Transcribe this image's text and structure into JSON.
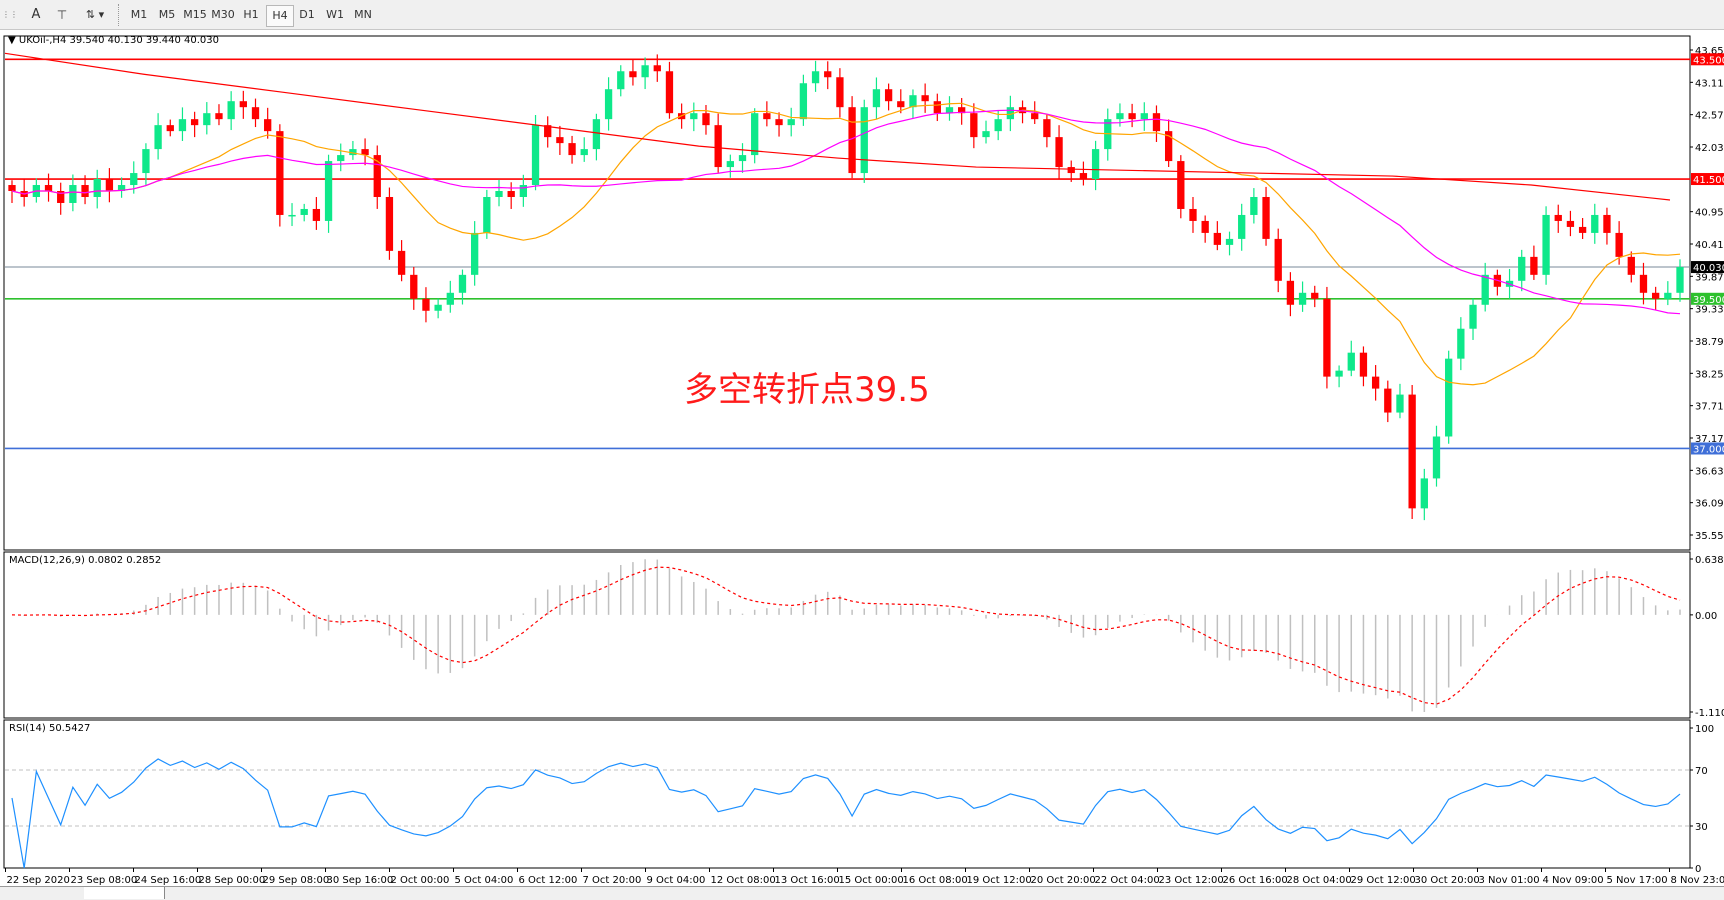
{
  "toolbar": {
    "icons": [
      "fibo-icon",
      "text-A-icon",
      "text-label-icon",
      "arrows-icon"
    ],
    "text_tool": "A",
    "timeframes": [
      "M1",
      "M5",
      "M15",
      "M30",
      "H1",
      "H4",
      "D1",
      "W1",
      "MN"
    ],
    "active_timeframe": "H4"
  },
  "header": {
    "symbol": "UKOil-,H4",
    "ohlc": "39.540 40.130 39.440 40.030"
  },
  "annotation": "多空转折点39.5",
  "macd": {
    "label": "MACD(12,26,9) 0.0802 0.2852",
    "axis": [
      "0.6386",
      "0.00",
      "-1.1104"
    ]
  },
  "rsi": {
    "label": "RSI(14) 50.5427",
    "axis": [
      "100",
      "70",
      "30",
      "0"
    ]
  },
  "colors": {
    "up": "#0ee88a",
    "down": "#ff0000",
    "ma_fast": "#ffa500",
    "ma_mid": "#ff00ff",
    "ma_slow": "#ff0000",
    "line_43_5": "#ff0000",
    "line_41_5": "#ff0000",
    "line_39_5": "#2ec12e",
    "line_37": "#3f6fd8",
    "current": "#7a8a99"
  },
  "chart_data": {
    "type": "candlestick",
    "symbol": "UKOil-",
    "timeframe": "H4",
    "ylim": [
      35.555,
      43.655
    ],
    "price_ticks": [
      "43.655",
      "43.115",
      "42.575",
      "42.035",
      "40.955",
      "40.415",
      "39.875",
      "39.335",
      "38.795",
      "38.255",
      "37.715",
      "37.175",
      "36.635",
      "36.095",
      "35.555"
    ],
    "horizontal_lines": [
      {
        "price": "43.500",
        "color": "#ff0000"
      },
      {
        "price": "41.500",
        "color": "#ff0000"
      },
      {
        "price": "39.500",
        "color": "#2ec12e"
      },
      {
        "price": "37.000",
        "color": "#3f6fd8"
      }
    ],
    "current_price": "40.030",
    "x_labels": [
      "22 Sep 2020",
      "23 Sep 08:00",
      "24 Sep 16:00",
      "28 Sep 00:00",
      "29 Sep 08:00",
      "30 Sep 16:00",
      "2 Oct 00:00",
      "5 Oct 04:00",
      "6 Oct 12:00",
      "7 Oct 20:00",
      "9 Oct 04:00",
      "12 Oct 08:00",
      "13 Oct 16:00",
      "15 Oct 00:00",
      "16 Oct 08:00",
      "19 Oct 12:00",
      "20 Oct 20:00",
      "22 Oct 04:00",
      "23 Oct 12:00",
      "26 Oct 16:00",
      "28 Oct 04:00",
      "29 Oct 12:00",
      "30 Oct 20:00",
      "3 Nov 01:00",
      "4 Nov 09:00",
      "5 Nov 17:00",
      "8 Nov 23:00"
    ],
    "closes": [
      41.3,
      41.2,
      41.4,
      41.3,
      41.1,
      41.4,
      41.2,
      41.5,
      41.3,
      41.4,
      41.6,
      42.0,
      42.4,
      42.3,
      42.5,
      42.4,
      42.6,
      42.5,
      42.8,
      42.7,
      42.5,
      42.3,
      40.9,
      40.9,
      41.0,
      40.8,
      41.8,
      41.9,
      42.0,
      41.9,
      41.2,
      40.3,
      39.9,
      39.5,
      39.3,
      39.4,
      39.6,
      39.9,
      40.6,
      41.2,
      41.3,
      41.2,
      41.4,
      42.4,
      42.2,
      42.1,
      41.9,
      42.0,
      42.5,
      43.0,
      43.3,
      43.2,
      43.4,
      43.3,
      42.6,
      42.5,
      42.6,
      42.4,
      41.7,
      41.8,
      41.9,
      42.6,
      42.5,
      42.4,
      42.5,
      43.1,
      43.3,
      43.2,
      42.7,
      41.6,
      42.7,
      43.0,
      42.8,
      42.7,
      42.9,
      42.8,
      42.6,
      42.7,
      42.6,
      42.2,
      42.3,
      42.5,
      42.7,
      42.6,
      42.5,
      42.2,
      41.7,
      41.6,
      41.5,
      42.0,
      42.5,
      42.6,
      42.5,
      42.6,
      42.3,
      41.8,
      41.0,
      40.8,
      40.6,
      40.4,
      40.5,
      40.9,
      41.2,
      40.5,
      39.8,
      39.4,
      39.6,
      39.5,
      38.2,
      38.3,
      38.6,
      38.2,
      38.0,
      37.6,
      37.9,
      36.0,
      36.5,
      37.2,
      38.5,
      39.0,
      39.4,
      39.9,
      39.7,
      39.8,
      40.2,
      39.9,
      40.9,
      40.8,
      40.7,
      40.6,
      40.9,
      40.6,
      40.2,
      39.9,
      39.6,
      39.5,
      39.6,
      40.03
    ],
    "ma_slow_values": [
      43.6,
      43.25,
      42.95,
      42.65,
      42.35,
      42.05,
      41.85,
      41.7,
      41.65,
      41.6,
      41.55,
      41.4,
      41.15
    ],
    "ma_fast_period": 14,
    "ma_mid_period": 34,
    "macd_range": [
      -1.1104,
      0.6386
    ],
    "rsi_levels": [
      30,
      70
    ]
  }
}
